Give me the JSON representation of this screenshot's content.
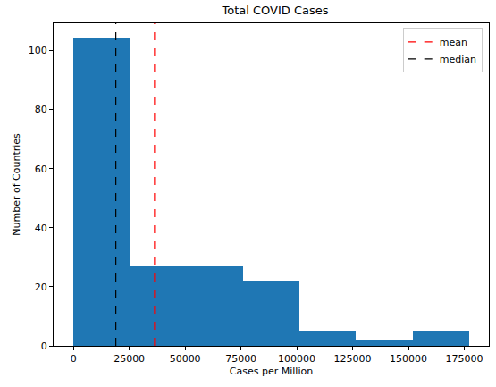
{
  "chart_data": {
    "type": "histogram",
    "title": "Total COVID Cases",
    "x_label": "Cases per Million",
    "y_label": "Number of Countries",
    "bins": [
      0,
      25300,
      50600,
      75900,
      101200,
      126500,
      151800,
      177100
    ],
    "values": [
      104,
      27,
      27,
      22,
      5,
      2,
      5
    ],
    "color": "#1f77b4",
    "lines": [
      {
        "name": "mean",
        "value": 36300,
        "color": "#ff0000",
        "line_style": "dashed"
      },
      {
        "name": "median",
        "value": 19000,
        "color": "#000000",
        "line_style": "dashed"
      }
    ],
    "xlim": [
      -8855,
      185955
    ],
    "xticks": [
      0,
      25000,
      50000,
      75000,
      100000,
      125000,
      150000,
      175000
    ],
    "ylim": [
      0,
      109.2
    ],
    "yticks": [
      0,
      20,
      40,
      60,
      80,
      100
    ],
    "grid": false,
    "legend": "upper right"
  }
}
